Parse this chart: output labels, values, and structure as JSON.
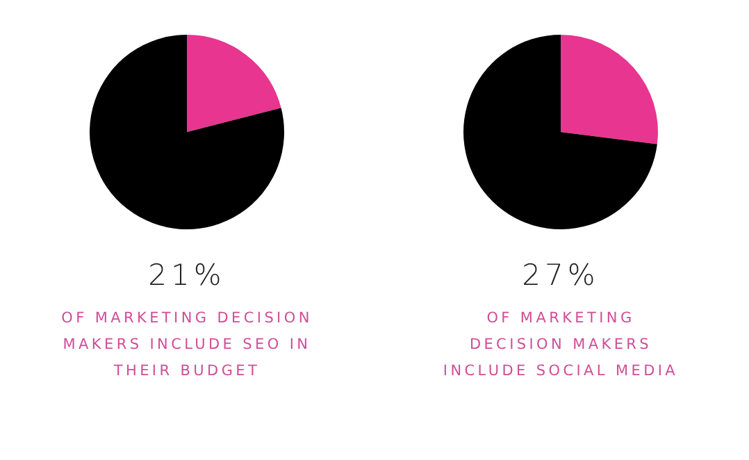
{
  "chart_data": [
    {
      "type": "pie",
      "categories": [
        null,
        null
      ],
      "values": [
        21,
        79
      ],
      "colors": [
        "#e8358f",
        "#000000"
      ],
      "title": "21%",
      "annotations": [
        "OF MARKETING DECISION\nMAKERS INCLUDE SEO IN\nTHEIR BUDGET"
      ]
    },
    {
      "type": "pie",
      "categories": [
        null,
        null
      ],
      "values": [
        27,
        73
      ],
      "colors": [
        "#e8358f",
        "#000000"
      ],
      "title": "27%",
      "annotations": [
        "OF MARKETING\nDECISION MAKERS\nINCLUDE SOCIAL MEDIA"
      ]
    }
  ]
}
